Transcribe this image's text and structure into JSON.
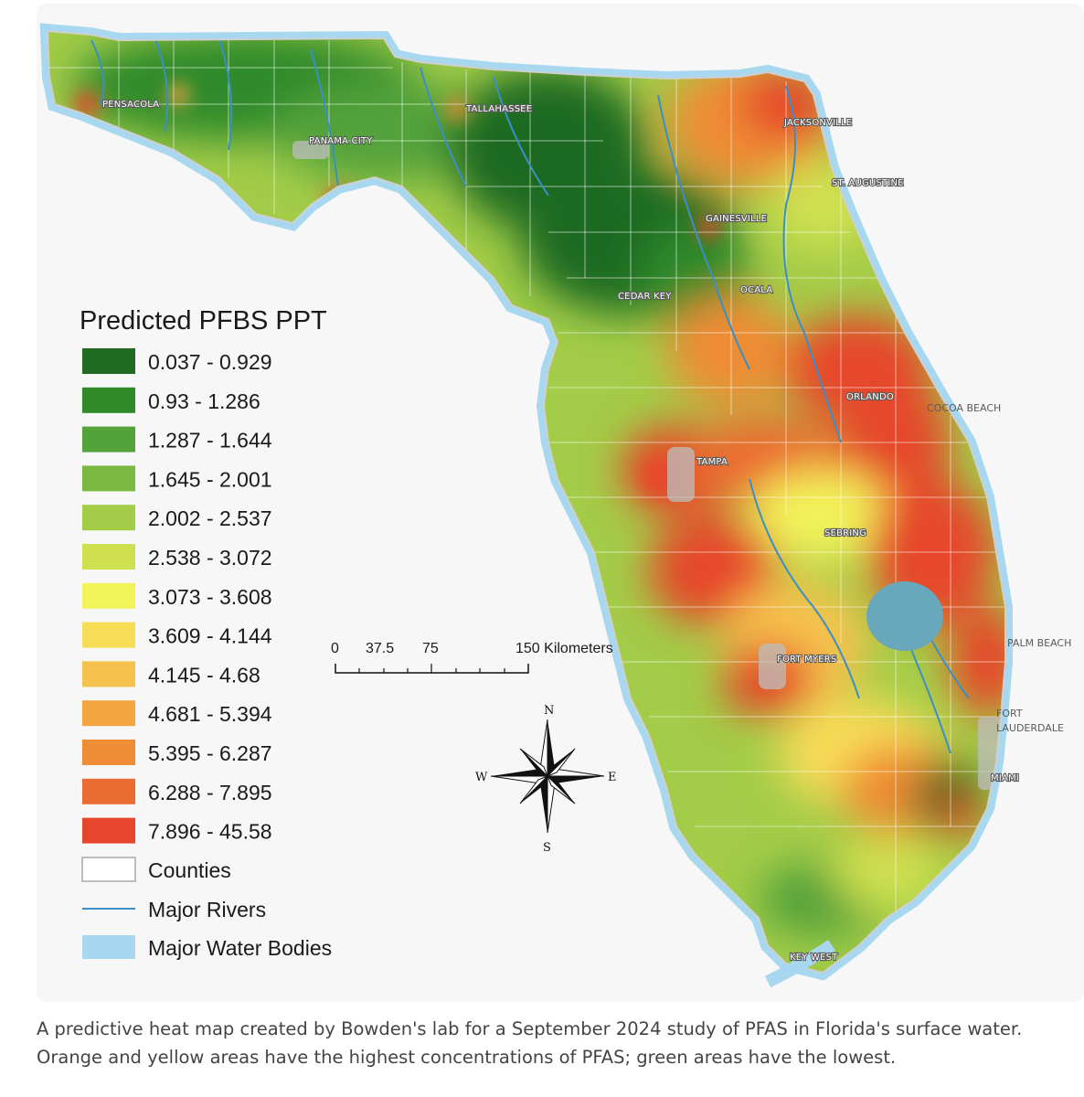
{
  "legend": {
    "title": "Predicted PFBS PPT",
    "classes": [
      {
        "label": "0.037 - 0.929",
        "color": "#1f6b22"
      },
      {
        "label": "0.93 - 1.286",
        "color": "#2f8a2a"
      },
      {
        "label": "1.287 - 1.644",
        "color": "#53a23a"
      },
      {
        "label": "1.645 - 2.001",
        "color": "#7ab842"
      },
      {
        "label": "2.002 - 2.537",
        "color": "#a3cc48"
      },
      {
        "label": "2.538 - 3.072",
        "color": "#cfe04f"
      },
      {
        "label": "3.073 - 3.608",
        "color": "#f2f25a"
      },
      {
        "label": "3.609 - 4.144",
        "color": "#f7dc56"
      },
      {
        "label": "4.145 - 4.68",
        "color": "#f5c24d"
      },
      {
        "label": "4.681 - 5.394",
        "color": "#f2a540"
      },
      {
        "label": "5.395 - 6.287",
        "color": "#ef8c36"
      },
      {
        "label": "6.288 - 7.895",
        "color": "#eb6c32"
      },
      {
        "label": "7.896 - 45.58",
        "color": "#e6462c"
      }
    ],
    "counties_label": "Counties",
    "rivers_label": "Major Rivers",
    "water_label": "Major Water Bodies",
    "river_color": "#3a8fc7",
    "water_color": "#a8d8ef"
  },
  "scale_bar": {
    "ticks": [
      "0",
      "37.5",
      "75",
      "150 Kilometers"
    ]
  },
  "compass": {
    "n": "N",
    "s": "S",
    "e": "E",
    "w": "W"
  },
  "cities": {
    "pensacola": "PENSACOLA",
    "tallahassee": "TALLAHASSEE",
    "panama_city": "PANAMA CITY",
    "jacksonville": "JACKSONVILLE",
    "st_augustine": "ST. AUGUSTINE",
    "gainesville": "GAINESVILLE",
    "ocala": "OCALA",
    "cedar_key": "CEDAR KEY",
    "orlando": "ORLANDO",
    "cocoa_beach": "COCOA BEACH",
    "tampa": "TAMPA",
    "sebring": "SEBRING",
    "fort_myers": "FORT MYERS",
    "palm_beach": "PALM BEACH",
    "fort_lauderdale_1": "FORT",
    "fort_lauderdale_2": "LAUDERDALE",
    "miami": "MIAMI",
    "key_west": "KEY WEST"
  },
  "caption": {
    "line1": "A predictive heat map created by Bowden's lab for a September 2024 study of PFAS in Florida's surface water.",
    "line2": "Orange and yellow areas have the highest concentrations of PFAS; green areas have the lowest."
  }
}
